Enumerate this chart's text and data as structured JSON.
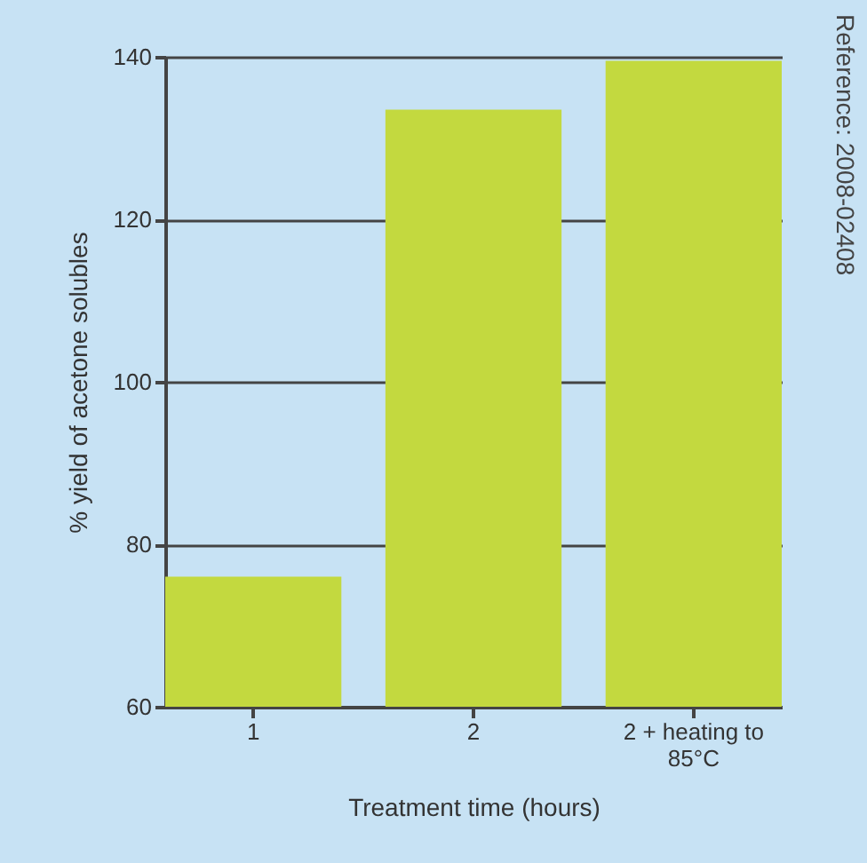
{
  "chart_data": {
    "type": "bar",
    "xlabel": "Treatment time (hours)",
    "ylabel": "% yield of acetone solubles",
    "categories": [
      "1",
      "2",
      "2 + heating to 85°C"
    ],
    "values": [
      76,
      133.5,
      139.5
    ],
    "color": "#c3d93f",
    "ylim": [
      60,
      140
    ],
    "yticks": [
      60,
      80,
      100,
      120,
      140
    ],
    "grid": "y",
    "annotations": [
      "Reference:  2008-02408"
    ]
  }
}
